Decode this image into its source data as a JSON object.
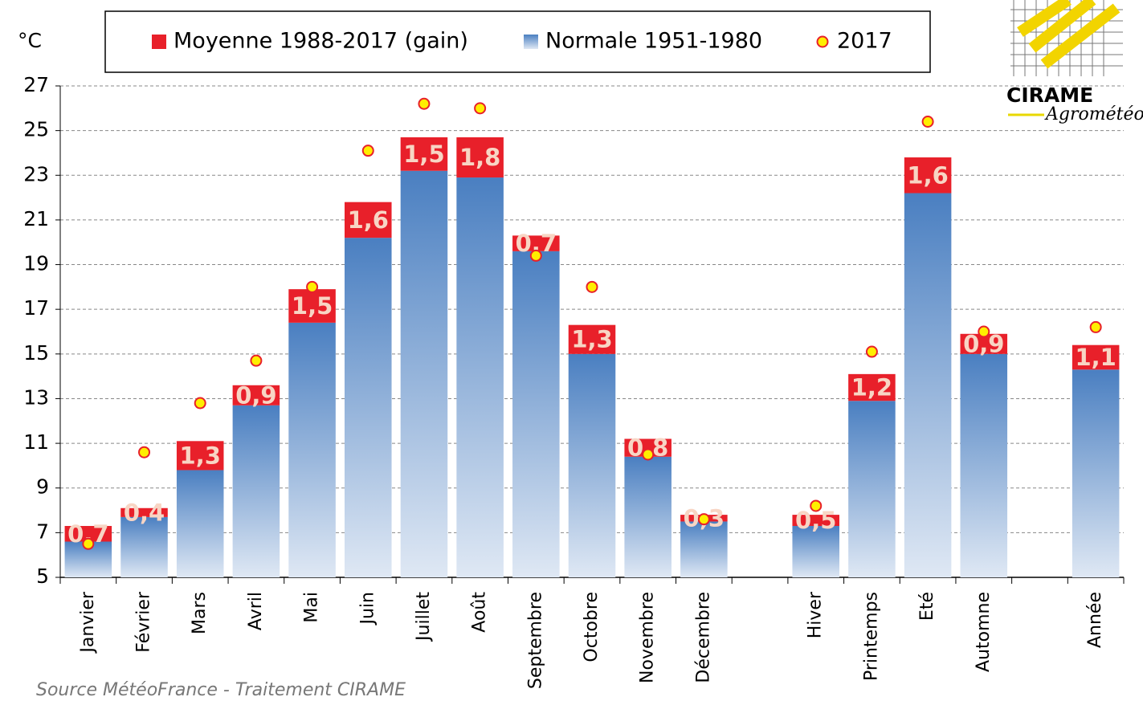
{
  "chart_data": {
    "type": "bar",
    "y_label": "°C",
    "categories": [
      "Janvier",
      "Février",
      "Mars",
      "Avril",
      "Mai",
      "Juin",
      "Juillet",
      "Août",
      "Septembre",
      "Octobre",
      "Novembre",
      "Décembre",
      null,
      "Hiver",
      "Printemps",
      "Eté",
      "Automne",
      null,
      "Année"
    ],
    "series": [
      {
        "name": "Moyenne 1988-2017 (gain)",
        "type": "bar",
        "color": "#e8202a",
        "values": [
          0.7,
          0.4,
          1.3,
          0.9,
          1.5,
          1.6,
          1.5,
          1.8,
          0.7,
          1.3,
          0.8,
          0.3,
          null,
          0.5,
          1.2,
          1.6,
          0.9,
          null,
          1.1
        ],
        "value_labels": [
          "0,7",
          "0,4",
          "1,3",
          "0,9",
          "1,5",
          "1,6",
          "1,5",
          "1,8",
          "0,7",
          "1,3",
          "0,8",
          "0,3",
          null,
          "0,5",
          "1,2",
          "1,6",
          "0,9",
          null,
          "1,1"
        ]
      },
      {
        "name": "Normale 1951-1980",
        "type": "bar",
        "color": "#4a7fc1",
        "values": [
          6.6,
          7.7,
          9.8,
          12.7,
          16.4,
          20.2,
          23.2,
          22.9,
          19.6,
          15.0,
          10.4,
          7.5,
          null,
          7.3,
          12.9,
          22.2,
          15.0,
          null,
          14.3
        ]
      },
      {
        "name": "2017",
        "type": "scatter",
        "color": "#ffee00",
        "values": [
          6.5,
          10.6,
          12.8,
          14.7,
          18.0,
          24.1,
          26.2,
          26.0,
          19.4,
          18.0,
          10.5,
          7.6,
          null,
          8.2,
          15.1,
          25.4,
          16.0,
          null,
          16.2
        ]
      }
    ],
    "ylim": [
      5,
      27
    ],
    "yticks": [
      5,
      7,
      9,
      11,
      13,
      15,
      17,
      19,
      21,
      23,
      25,
      27
    ],
    "grid": true
  },
  "source": "Source MétéoFrance - Traitement CIRAME",
  "logo": {
    "name": "CIRAME",
    "tagline": "Agrométéo"
  }
}
